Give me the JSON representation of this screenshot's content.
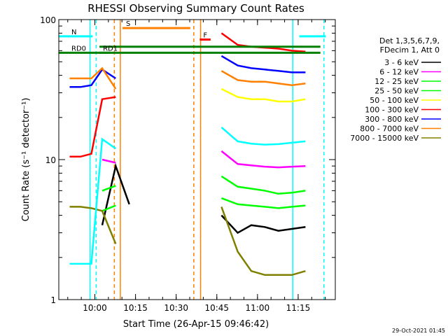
{
  "chart_data": {
    "type": "line",
    "title": "RHESSI Observing Summary Count Rates",
    "xlabel": "Start Time (26-Apr-15 09:46:42)",
    "ylabel": "Count Rate (s⁻¹ detector⁻¹)",
    "ylim": [
      1,
      100
    ],
    "yscale": "log",
    "x_tick_labels": [
      "10:00",
      "10:15",
      "10:30",
      "10:45",
      "11:00",
      "11:15"
    ],
    "x_tick_minutes": [
      13.3,
      28.3,
      43.3,
      58.3,
      73.3,
      88.3
    ],
    "y_tick_labels": [
      "1",
      "10",
      "100"
    ],
    "y_tick_values": [
      1,
      10,
      100
    ],
    "legend_header": [
      "Det 1,3,5,6,7,9,",
      "FDecim 1, Att 0"
    ],
    "legend_position": "right",
    "footer_date": "29-Oct-2021 01:45",
    "series": [
      {
        "name": "3 - 6 keV",
        "color": "#000000",
        "x": [
          4,
          8,
          12,
          16,
          21,
          26,
          31,
          36,
          41,
          46,
          51,
          56,
          60,
          66,
          71,
          76,
          81,
          86,
          91
        ],
        "y": [
          null,
          null,
          null,
          3.4,
          9.0,
          4.8,
          null,
          null,
          null,
          null,
          null,
          null,
          4.0,
          3.0,
          3.4,
          3.3,
          3.1,
          3.2,
          3.3
        ]
      },
      {
        "name": "6 - 12 keV",
        "color": "#ff00ff",
        "x": [
          4,
          8,
          12,
          16,
          21,
          26,
          31,
          36,
          41,
          46,
          51,
          56,
          60,
          66,
          71,
          76,
          81,
          86,
          91
        ],
        "y": [
          null,
          null,
          null,
          10.0,
          9.5,
          null,
          null,
          null,
          null,
          null,
          null,
          null,
          11.5,
          9.3,
          9.1,
          8.9,
          8.8,
          8.9,
          9.0
        ]
      },
      {
        "name": "12 - 25 keV",
        "color": "#00ff00",
        "x": [
          4,
          8,
          12,
          16,
          21,
          26,
          31,
          36,
          41,
          46,
          51,
          56,
          60,
          66,
          71,
          76,
          81,
          86,
          91
        ],
        "y": [
          null,
          null,
          null,
          6.0,
          6.5,
          null,
          null,
          null,
          null,
          null,
          null,
          null,
          7.6,
          6.4,
          6.2,
          6.0,
          5.7,
          5.8,
          6.0
        ]
      },
      {
        "name": "25 - 50 keV",
        "color": "#00ff00",
        "x": [
          4,
          8,
          12,
          16,
          21,
          26,
          31,
          36,
          41,
          46,
          51,
          56,
          60,
          66,
          71,
          76,
          81,
          86,
          91
        ],
        "y": [
          null,
          null,
          null,
          4.3,
          4.7,
          null,
          null,
          null,
          null,
          null,
          null,
          null,
          5.3,
          4.8,
          4.7,
          4.6,
          4.5,
          4.6,
          4.7
        ]
      },
      {
        "name": "50 - 100 keV",
        "color": "#ffff00",
        "x": [
          4,
          8,
          12,
          16,
          21,
          26,
          31,
          36,
          41,
          46,
          51,
          56,
          60,
          66,
          71,
          76,
          81,
          86,
          91
        ],
        "y": [
          null,
          null,
          null,
          null,
          null,
          null,
          null,
          null,
          null,
          null,
          null,
          null,
          32,
          28,
          27,
          27,
          26,
          26,
          27
        ]
      },
      {
        "name": "100 - 300 keV",
        "color": "#ff0000",
        "x": [
          4,
          8,
          12,
          16,
          21,
          26,
          31,
          36,
          41,
          46,
          51,
          56,
          60,
          66,
          71,
          76,
          81,
          86,
          91
        ],
        "y": [
          10.5,
          10.5,
          11,
          27,
          28,
          null,
          null,
          null,
          null,
          null,
          null,
          null,
          80,
          66,
          64,
          63,
          62,
          60,
          59
        ]
      },
      {
        "name": "300 - 800 keV",
        "color": "#0000ff",
        "x": [
          4,
          8,
          12,
          16,
          21,
          26,
          31,
          36,
          41,
          46,
          51,
          56,
          60,
          66,
          71,
          76,
          81,
          86,
          91
        ],
        "y": [
          33,
          33,
          34,
          44,
          38,
          null,
          null,
          null,
          null,
          null,
          null,
          null,
          55,
          47,
          45,
          44,
          43,
          42,
          42
        ]
      },
      {
        "name": "800 - 7000 keV",
        "color": "#ff8000",
        "x": [
          4,
          8,
          12,
          16,
          21,
          26,
          31,
          36,
          41,
          46,
          51,
          56,
          60,
          66,
          71,
          76,
          81,
          86,
          91
        ],
        "y": [
          38,
          38,
          38,
          45,
          32,
          null,
          null,
          null,
          null,
          null,
          null,
          null,
          43,
          37,
          36,
          36,
          35,
          34,
          35
        ]
      },
      {
        "name": "7000 - 15000 keV",
        "color": "#808000",
        "x": [
          4,
          8,
          12,
          16,
          21,
          26,
          31,
          36,
          41,
          46,
          51,
          56,
          60,
          66,
          71,
          76,
          81,
          86,
          91
        ],
        "y": [
          4.6,
          4.6,
          4.5,
          4.3,
          2.5,
          null,
          null,
          null,
          null,
          null,
          null,
          null,
          4.6,
          2.2,
          1.6,
          1.5,
          1.5,
          1.5,
          1.6
        ]
      },
      {
        "name": "",
        "color": "#00ffff",
        "x": [
          4,
          8,
          12,
          16,
          21,
          26,
          31,
          36,
          41,
          46,
          51,
          56,
          60,
          66,
          71,
          76,
          81,
          86,
          91
        ],
        "y": [
          1.8,
          1.8,
          1.8,
          14,
          12,
          null,
          null,
          null,
          null,
          null,
          null,
          null,
          17,
          13.5,
          13,
          12.8,
          12.9,
          13.2,
          13.5
        ]
      }
    ],
    "flag_bars": [
      {
        "label": "N",
        "color": "#00ffff",
        "x": [
          0,
          12.5
        ],
        "y": 76
      },
      {
        "label": "",
        "color": "#00ffff",
        "x": [
          88.7,
          98.5
        ],
        "y": 76
      },
      {
        "label": "S",
        "color": "#ff8000",
        "x": [
          23.5,
          48.5
        ],
        "y": 87
      },
      {
        "label": "RD0",
        "color": "#008000",
        "x": [
          0,
          96.5
        ],
        "y": 58
      },
      {
        "label": "",
        "color": "#008000",
        "x": [
          15,
          96.5
        ],
        "y": 64
      },
      {
        "label": "RD1",
        "color": "#008000",
        "x": [
          15,
          19
        ],
        "y": 58
      },
      {
        "label": "F",
        "color": "#ff0000",
        "x": [
          52,
          56
        ],
        "y": 72
      }
    ],
    "vlines": [
      {
        "x": 11.5,
        "color": "#00ffff",
        "style": "solid"
      },
      {
        "x": 13.8,
        "color": "#00ffff",
        "style": "dashed"
      },
      {
        "x": 20.5,
        "color": "#ff8000",
        "style": "dashed"
      },
      {
        "x": 22.7,
        "color": "#ff8000",
        "style": "solid"
      },
      {
        "x": 49.8,
        "color": "#ff8000",
        "style": "dashed"
      },
      {
        "x": 52.3,
        "color": "#ff8000",
        "style": "solid"
      },
      {
        "x": 86.3,
        "color": "#00ffff",
        "style": "solid"
      },
      {
        "x": 97.8,
        "color": "#00ffff",
        "style": "dashed"
      }
    ],
    "x_range_minutes": [
      0,
      102
    ]
  }
}
